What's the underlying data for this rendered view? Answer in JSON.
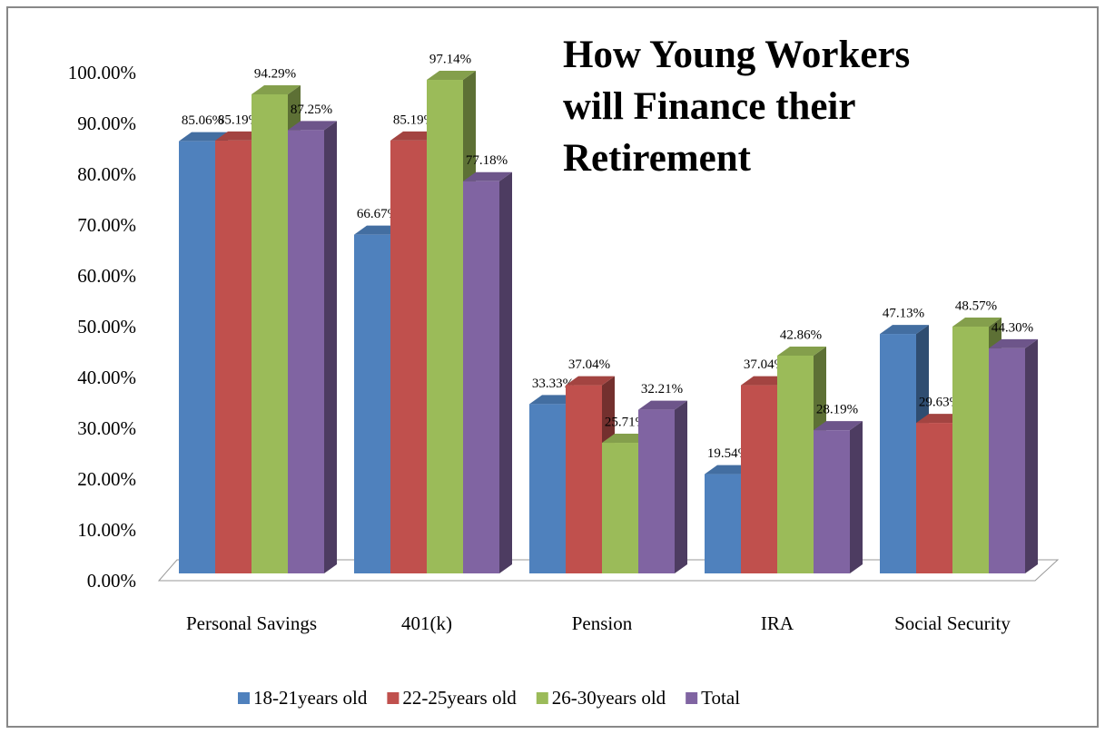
{
  "chart_data": {
    "type": "bar3d",
    "title": [
      "How Young Workers",
      "will Finance their",
      "Retirement"
    ],
    "categories": [
      "Personal Savings",
      "401(k)",
      "Pension",
      "IRA",
      "Social Security"
    ],
    "series": [
      {
        "name": "18-21years old",
        "color": "#4f81bd",
        "values": [
          85.06,
          66.67,
          33.33,
          19.54,
          47.13
        ],
        "value_labels": [
          "85.06%",
          "66.67%",
          "33.33%",
          "19.54%",
          "47.13%"
        ]
      },
      {
        "name": "22-25years old",
        "color": "#c0504d",
        "values": [
          85.19,
          85.19,
          37.04,
          37.04,
          29.63
        ],
        "value_labels": [
          "85.19%",
          "85.19%",
          "37.04%",
          "37.04%",
          "29.63%"
        ]
      },
      {
        "name": "26-30years old",
        "color": "#9bbb59",
        "values": [
          94.29,
          97.14,
          25.71,
          42.86,
          48.57
        ],
        "value_labels": [
          "94.29%",
          "97.14%",
          "25.71%",
          "42.86%",
          "48.57%"
        ]
      },
      {
        "name": "Total",
        "color": "#8064a2",
        "values": [
          87.25,
          77.18,
          32.21,
          28.19,
          44.3
        ],
        "value_labels": [
          "87.25%",
          "77.18%",
          "32.21%",
          "28.19%",
          "44.30%"
        ]
      }
    ],
    "ylim": [
      0,
      100
    ],
    "yticks": [
      {
        "value": 0,
        "label": "0.00%"
      },
      {
        "value": 10,
        "label": "10.00%"
      },
      {
        "value": 20,
        "label": "20.00%"
      },
      {
        "value": 30,
        "label": "30.00%"
      },
      {
        "value": 40,
        "label": "40.00%"
      },
      {
        "value": 50,
        "label": "50.00%"
      },
      {
        "value": 60,
        "label": "60.00%"
      },
      {
        "value": 70,
        "label": "70.00%"
      },
      {
        "value": 80,
        "label": "80.00%"
      },
      {
        "value": 90,
        "label": "90.00%"
      },
      {
        "value": 100,
        "label": "100.00%"
      }
    ],
    "legend": "bottom"
  }
}
